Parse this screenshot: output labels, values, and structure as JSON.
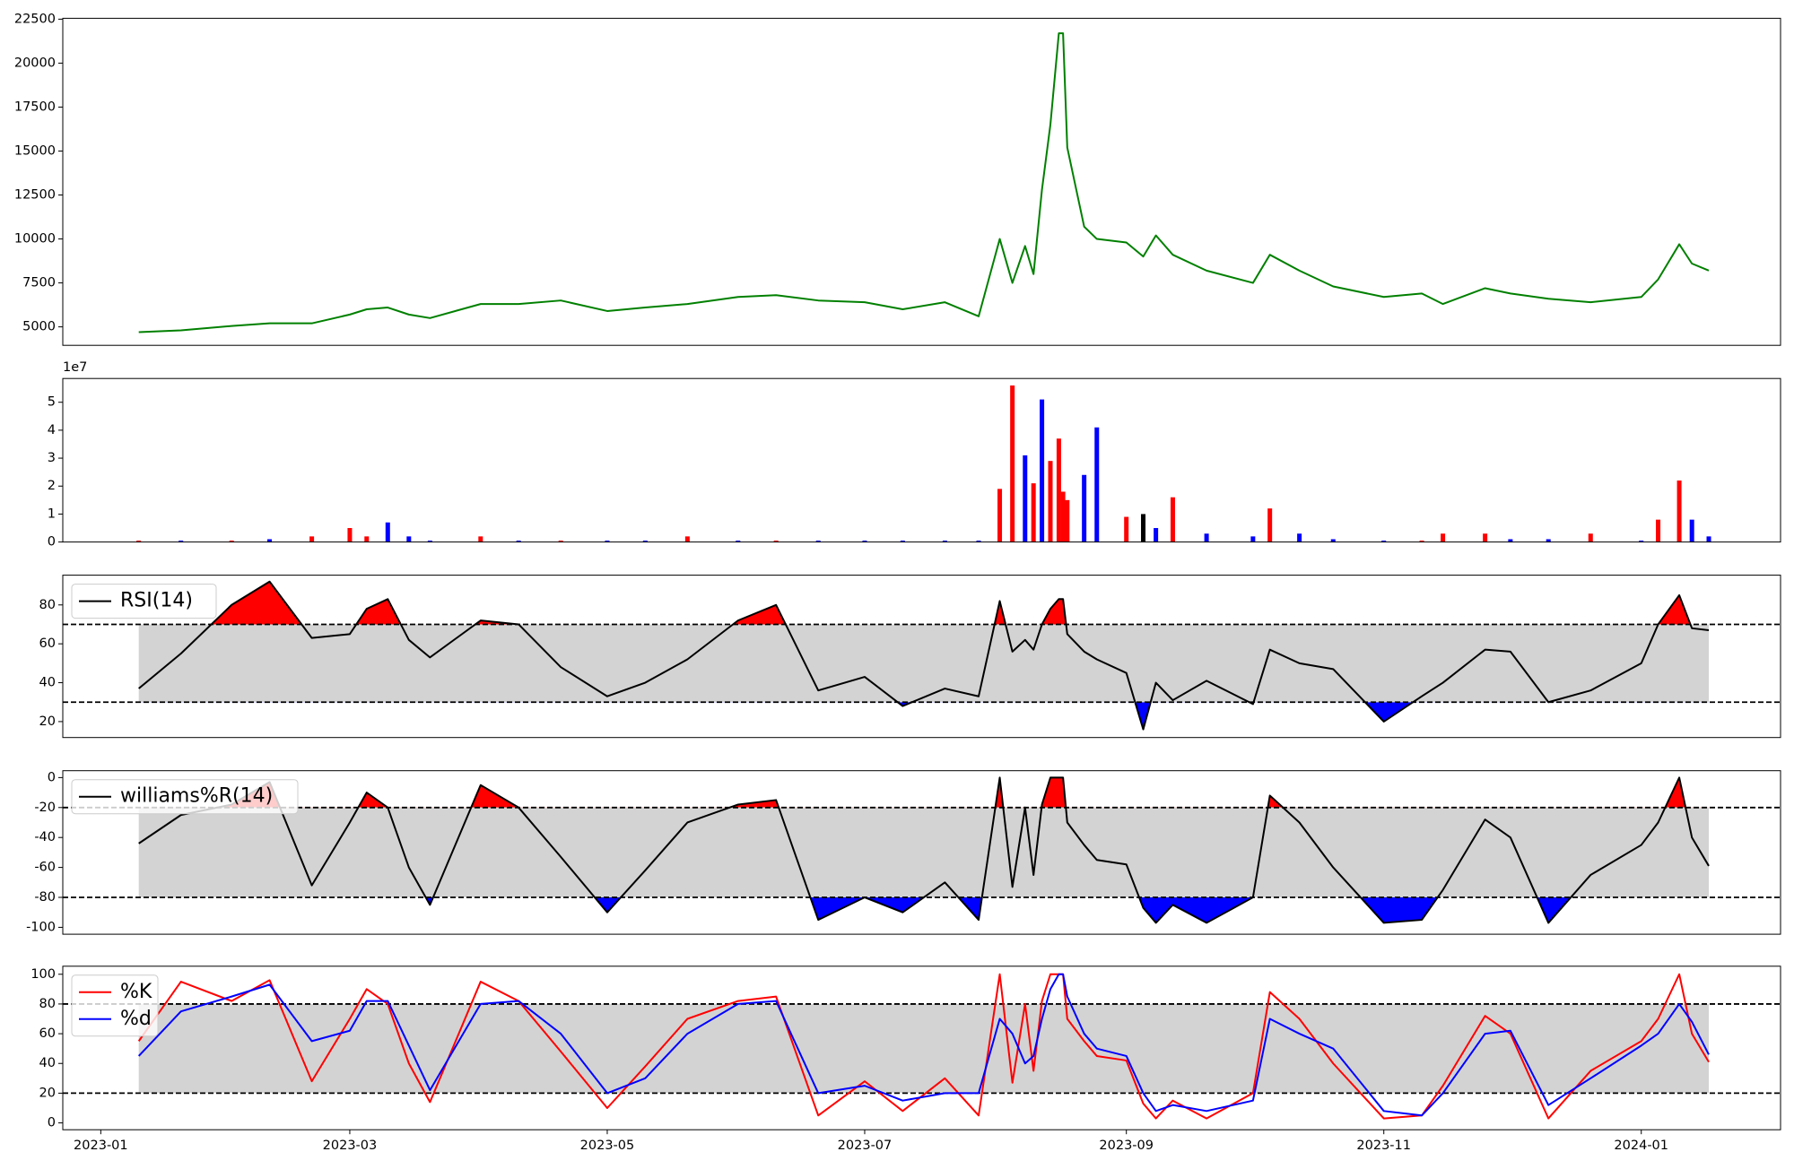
{
  "chart_data": [
    {
      "type": "line",
      "x": [
        "2023-01-10",
        "2023-01-20",
        "2023-02-01",
        "2023-02-10",
        "2023-02-20",
        "2023-03-01",
        "2023-03-05",
        "2023-03-10",
        "2023-03-15",
        "2023-03-20",
        "2023-04-01",
        "2023-04-10",
        "2023-04-20",
        "2023-05-01",
        "2023-05-10",
        "2023-05-20",
        "2023-06-01",
        "2023-06-10",
        "2023-06-20",
        "2023-07-01",
        "2023-07-10",
        "2023-07-20",
        "2023-07-28",
        "2023-08-02",
        "2023-08-05",
        "2023-08-08",
        "2023-08-10",
        "2023-08-12",
        "2023-08-14",
        "2023-08-16",
        "2023-08-17",
        "2023-08-18",
        "2023-08-22",
        "2023-08-25",
        "2023-09-01",
        "2023-09-05",
        "2023-09-08",
        "2023-09-12",
        "2023-09-20",
        "2023-10-01",
        "2023-10-05",
        "2023-10-12",
        "2023-10-20",
        "2023-11-01",
        "2023-11-10",
        "2023-11-15",
        "2023-11-25",
        "2023-12-01",
        "2023-12-10",
        "2023-12-20",
        "2024-01-01",
        "2024-01-05",
        "2024-01-10",
        "2024-01-13",
        "2024-01-17"
      ],
      "values": [
        4700,
        4800,
        5050,
        5200,
        5200,
        5700,
        6000,
        6100,
        5700,
        5500,
        6300,
        6300,
        6500,
        5900,
        6100,
        6300,
        6700,
        6800,
        6500,
        6400,
        6000,
        6400,
        5600,
        10000,
        7500,
        9600,
        8000,
        12800,
        16500,
        21700,
        21700,
        15200,
        10700,
        10000,
        9800,
        9000,
        10200,
        9100,
        8200,
        7500,
        9100,
        8200,
        7300,
        6700,
        6900,
        6300,
        7200,
        6900,
        6600,
        6400,
        6700,
        7700,
        9700,
        8600,
        8200
      ],
      "color": "green",
      "xlim": [
        "2022-12-23",
        "2024-02-03"
      ],
      "ylim": [
        3950,
        22550
      ],
      "yticks": [
        5000,
        7500,
        10000,
        12500,
        15000,
        17500,
        20000,
        22500
      ]
    },
    {
      "type": "bar",
      "x": [
        "2023-01-10",
        "2023-01-20",
        "2023-02-01",
        "2023-02-10",
        "2023-02-20",
        "2023-03-01",
        "2023-03-05",
        "2023-03-10",
        "2023-03-15",
        "2023-03-20",
        "2023-04-01",
        "2023-04-10",
        "2023-04-20",
        "2023-05-01",
        "2023-05-10",
        "2023-05-20",
        "2023-06-01",
        "2023-06-10",
        "2023-06-20",
        "2023-07-01",
        "2023-07-10",
        "2023-07-20",
        "2023-07-28",
        "2023-08-02",
        "2023-08-05",
        "2023-08-08",
        "2023-08-10",
        "2023-08-12",
        "2023-08-14",
        "2023-08-16",
        "2023-08-17",
        "2023-08-18",
        "2023-08-22",
        "2023-08-25",
        "2023-09-01",
        "2023-09-05",
        "2023-09-08",
        "2023-09-12",
        "2023-09-20",
        "2023-10-01",
        "2023-10-05",
        "2023-10-12",
        "2023-10-20",
        "2023-11-01",
        "2023-11-10",
        "2023-11-15",
        "2023-11-25",
        "2023-12-01",
        "2023-12-10",
        "2023-12-20",
        "2024-01-01",
        "2024-01-05",
        "2024-01-10",
        "2024-01-13",
        "2024-01-17"
      ],
      "values": [
        0.05,
        0.05,
        0.05,
        0.1,
        0.2,
        0.5,
        0.2,
        0.7,
        0.2,
        0.05,
        0.2,
        0.05,
        0.05,
        0.05,
        0.05,
        0.2,
        0.05,
        0.05,
        0.05,
        0.05,
        0.05,
        0.05,
        0.05,
        1.9,
        5.6,
        3.1,
        2.1,
        5.1,
        2.9,
        3.7,
        1.8,
        1.5,
        2.4,
        4.1,
        0.9,
        1.0,
        0.5,
        1.6,
        0.3,
        0.2,
        1.2,
        0.3,
        0.1,
        0.05,
        0.05,
        0.3,
        0.3,
        0.1,
        0.1,
        0.3,
        0.05,
        0.8,
        2.2,
        0.8,
        0.2
      ],
      "colors": [
        "red",
        "blue",
        "red",
        "blue",
        "red",
        "red",
        "red",
        "blue",
        "blue",
        "blue",
        "red",
        "blue",
        "red",
        "blue",
        "blue",
        "red",
        "blue",
        "red",
        "blue",
        "blue",
        "blue",
        "blue",
        "blue",
        "red",
        "red",
        "blue",
        "red",
        "blue",
        "red",
        "red",
        "red",
        "red",
        "blue",
        "blue",
        "red",
        "black",
        "blue",
        "red",
        "blue",
        "blue",
        "red",
        "blue",
        "blue",
        "blue",
        "red",
        "red",
        "red",
        "blue",
        "blue",
        "red",
        "blue",
        "red",
        "red",
        "blue",
        "blue"
      ],
      "offset_label": "1e7",
      "xlim": [
        "2022-12-23",
        "2024-02-03"
      ],
      "ylim": [
        0,
        5.85
      ],
      "yticks": [
        0,
        1,
        2,
        3,
        4,
        5
      ]
    },
    {
      "type": "line",
      "x": [
        "2023-01-10",
        "2023-01-20",
        "2023-02-01",
        "2023-02-10",
        "2023-02-20",
        "2023-03-01",
        "2023-03-05",
        "2023-03-10",
        "2023-03-15",
        "2023-03-20",
        "2023-04-01",
        "2023-04-10",
        "2023-04-20",
        "2023-05-01",
        "2023-05-10",
        "2023-05-20",
        "2023-06-01",
        "2023-06-10",
        "2023-06-20",
        "2023-07-01",
        "2023-07-10",
        "2023-07-20",
        "2023-07-28",
        "2023-08-02",
        "2023-08-05",
        "2023-08-08",
        "2023-08-10",
        "2023-08-12",
        "2023-08-14",
        "2023-08-16",
        "2023-08-17",
        "2023-08-18",
        "2023-08-22",
        "2023-08-25",
        "2023-09-01",
        "2023-09-05",
        "2023-09-08",
        "2023-09-12",
        "2023-09-20",
        "2023-10-01",
        "2023-10-05",
        "2023-10-12",
        "2023-10-20",
        "2023-11-01",
        "2023-11-10",
        "2023-11-15",
        "2023-11-25",
        "2023-12-01",
        "2023-12-10",
        "2023-12-20",
        "2024-01-01",
        "2024-01-05",
        "2024-01-10",
        "2024-01-13",
        "2024-01-17"
      ],
      "series": [
        {
          "name": "RSI(14)",
          "color": "black",
          "values": [
            37,
            55,
            80,
            92,
            63,
            65,
            78,
            83,
            62,
            53,
            72,
            70,
            48,
            33,
            40,
            52,
            72,
            80,
            36,
            43,
            28,
            37,
            33,
            82,
            56,
            62,
            57,
            70,
            78,
            83,
            83,
            65,
            56,
            52,
            45,
            16,
            40,
            31,
            41,
            29,
            57,
            50,
            47,
            20,
            33,
            40,
            57,
            56,
            30,
            36,
            50,
            70,
            85,
            68,
            67
          ]
        }
      ],
      "hlines": [
        70,
        30
      ],
      "fill_above": "red",
      "fill_below": "blue",
      "band_color": "lightgray",
      "legend": "upper left",
      "xlim": [
        "2022-12-23",
        "2024-02-03"
      ],
      "ylim": [
        11.8,
        95.3
      ],
      "yticks": [
        20,
        40,
        60,
        80
      ]
    },
    {
      "type": "line",
      "x": [
        "2023-01-10",
        "2023-01-20",
        "2023-02-01",
        "2023-02-10",
        "2023-02-20",
        "2023-03-01",
        "2023-03-05",
        "2023-03-10",
        "2023-03-15",
        "2023-03-20",
        "2023-04-01",
        "2023-04-10",
        "2023-04-20",
        "2023-05-01",
        "2023-05-10",
        "2023-05-20",
        "2023-06-01",
        "2023-06-10",
        "2023-06-20",
        "2023-07-01",
        "2023-07-10",
        "2023-07-20",
        "2023-07-28",
        "2023-08-02",
        "2023-08-05",
        "2023-08-08",
        "2023-08-10",
        "2023-08-12",
        "2023-08-14",
        "2023-08-16",
        "2023-08-17",
        "2023-08-18",
        "2023-08-22",
        "2023-08-25",
        "2023-09-01",
        "2023-09-05",
        "2023-09-08",
        "2023-09-12",
        "2023-09-20",
        "2023-10-01",
        "2023-10-05",
        "2023-10-12",
        "2023-10-20",
        "2023-11-01",
        "2023-11-10",
        "2023-11-15",
        "2023-11-25",
        "2023-12-01",
        "2023-12-10",
        "2023-12-20",
        "2024-01-01",
        "2024-01-05",
        "2024-01-10",
        "2024-01-13",
        "2024-01-17"
      ],
      "series": [
        {
          "name": "williams%R(14)",
          "color": "black",
          "values": [
            -44,
            -25,
            -18,
            -3,
            -72,
            -30,
            -10,
            -20,
            -60,
            -85,
            -5,
            -20,
            -53,
            -90,
            -62,
            -30,
            -18,
            -15,
            -95,
            -80,
            -90,
            -70,
            -95,
            0,
            -73,
            -20,
            -65,
            -18,
            0,
            0,
            0,
            -30,
            -45,
            -55,
            -58,
            -87,
            -97,
            -85,
            -97,
            -80,
            -12,
            -30,
            -60,
            -97,
            -95,
            -75,
            -28,
            -40,
            -97,
            -65,
            -45,
            -30,
            0,
            -40,
            -59
          ]
        }
      ],
      "hlines": [
        -20,
        -80
      ],
      "fill_above": "red",
      "fill_below": "blue",
      "band_color": "lightgray",
      "legend": "upper left",
      "xlim": [
        "2022-12-23",
        "2024-02-03"
      ],
      "ylim": [
        -104.6,
        4.6
      ],
      "yticks": [
        -100,
        -80,
        -60,
        -40,
        -20,
        0
      ]
    },
    {
      "type": "line",
      "x": [
        "2023-01-10",
        "2023-01-20",
        "2023-02-01",
        "2023-02-10",
        "2023-02-20",
        "2023-03-01",
        "2023-03-05",
        "2023-03-10",
        "2023-03-15",
        "2023-03-20",
        "2023-04-01",
        "2023-04-10",
        "2023-04-20",
        "2023-05-01",
        "2023-05-10",
        "2023-05-20",
        "2023-06-01",
        "2023-06-10",
        "2023-06-20",
        "2023-07-01",
        "2023-07-10",
        "2023-07-20",
        "2023-07-28",
        "2023-08-02",
        "2023-08-05",
        "2023-08-08",
        "2023-08-10",
        "2023-08-12",
        "2023-08-14",
        "2023-08-16",
        "2023-08-17",
        "2023-08-18",
        "2023-08-22",
        "2023-08-25",
        "2023-09-01",
        "2023-09-05",
        "2023-09-08",
        "2023-09-12",
        "2023-09-20",
        "2023-10-01",
        "2023-10-05",
        "2023-10-12",
        "2023-10-20",
        "2023-11-01",
        "2023-11-10",
        "2023-11-15",
        "2023-11-25",
        "2023-12-01",
        "2023-12-10",
        "2023-12-20",
        "2024-01-01",
        "2024-01-05",
        "2024-01-10",
        "2024-01-13",
        "2024-01-17"
      ],
      "series": [
        {
          "name": "%K",
          "color": "red",
          "values": [
            55,
            95,
            82,
            96,
            28,
            70,
            90,
            80,
            40,
            14,
            95,
            82,
            48,
            10,
            38,
            70,
            82,
            85,
            5,
            28,
            8,
            30,
            5,
            100,
            27,
            80,
            35,
            82,
            100,
            100,
            100,
            70,
            55,
            45,
            42,
            13,
            3,
            15,
            3,
            20,
            88,
            70,
            40,
            3,
            5,
            25,
            72,
            60,
            3,
            35,
            55,
            70,
            100,
            60,
            41
          ]
        },
        {
          "name": "%d",
          "color": "blue",
          "values": [
            45,
            75,
            85,
            93,
            55,
            62,
            82,
            82,
            52,
            22,
            80,
            82,
            60,
            20,
            30,
            60,
            80,
            82,
            20,
            25,
            15,
            20,
            20,
            70,
            60,
            40,
            45,
            70,
            90,
            100,
            100,
            85,
            60,
            50,
            45,
            20,
            8,
            12,
            8,
            15,
            70,
            60,
            50,
            8,
            5,
            20,
            60,
            62,
            12,
            30,
            52,
            60,
            80,
            68,
            46
          ]
        }
      ],
      "hlines": [
        80,
        20
      ],
      "band_color": "lightgray",
      "legend": "upper left",
      "xlim": [
        "2022-12-23",
        "2024-02-03"
      ],
      "ylim": [
        -4.6,
        105.4
      ],
      "yticks": [
        0,
        20,
        40,
        60,
        80,
        100
      ],
      "xticks": [
        "2023-01",
        "2023-03",
        "2023-05",
        "2023-07",
        "2023-09",
        "2023-11",
        "2024-01"
      ]
    }
  ]
}
